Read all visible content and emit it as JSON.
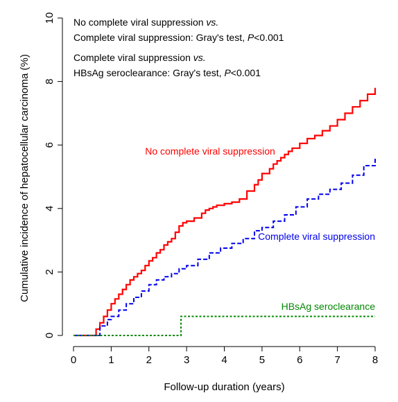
{
  "chart_data": {
    "type": "line",
    "xlabel": "Follow-up duration (years)",
    "ylabel": "Cumulative incidence of hepatocellular carcinoma (%)",
    "xlim": [
      0,
      8
    ],
    "ylim": [
      0,
      10
    ],
    "x_ticks": [
      "0",
      "1",
      "2",
      "3",
      "4",
      "5",
      "6",
      "7",
      "8"
    ],
    "y_ticks": [
      "0",
      "2",
      "4",
      "6",
      "8",
      "10"
    ],
    "grid": false,
    "annotations": [
      {
        "lines": [
          [
            {
              "text": "No complete viral suppression ",
              "italic": false
            },
            {
              "text": "vs.",
              "italic": true
            }
          ],
          [
            {
              "text": "Complete viral suppression: Gray's test, ",
              "italic": false
            },
            {
              "text": "P",
              "italic": true
            },
            {
              "text": "<0.001",
              "italic": false
            }
          ]
        ]
      },
      {
        "lines": [
          [
            {
              "text": "Complete viral suppression ",
              "italic": false
            },
            {
              "text": "vs.",
              "italic": true
            }
          ],
          [
            {
              "text": "HBsAg seroclearance: Gray's test, ",
              "italic": false
            },
            {
              "text": "P",
              "italic": true
            },
            {
              "text": "<0.001",
              "italic": false
            }
          ]
        ]
      }
    ],
    "series": [
      {
        "name": "No complete viral suppression",
        "color": "#ff0000",
        "style": "solid",
        "x": [
          0,
          0.5,
          0.6,
          0.7,
          0.8,
          0.9,
          1.0,
          1.1,
          1.2,
          1.3,
          1.4,
          1.5,
          1.6,
          1.7,
          1.8,
          1.9,
          2.0,
          2.1,
          2.2,
          2.3,
          2.4,
          2.5,
          2.6,
          2.7,
          2.8,
          2.9,
          3.0,
          3.2,
          3.4,
          3.5,
          3.6,
          3.7,
          3.8,
          4.0,
          4.2,
          4.4,
          4.6,
          4.8,
          4.9,
          5.0,
          5.2,
          5.3,
          5.4,
          5.5,
          5.6,
          5.7,
          5.8,
          6.0,
          6.2,
          6.4,
          6.6,
          6.8,
          7.0,
          7.2,
          7.4,
          7.6,
          7.8,
          8.0
        ],
        "y": [
          0,
          0,
          0.2,
          0.4,
          0.6,
          0.8,
          1.0,
          1.15,
          1.3,
          1.45,
          1.6,
          1.75,
          1.85,
          1.95,
          2.05,
          2.2,
          2.35,
          2.45,
          2.6,
          2.7,
          2.85,
          2.95,
          3.05,
          3.25,
          3.45,
          3.55,
          3.6,
          3.7,
          3.85,
          3.95,
          4.0,
          4.05,
          4.1,
          4.15,
          4.2,
          4.3,
          4.55,
          4.75,
          4.9,
          5.1,
          5.25,
          5.4,
          5.5,
          5.6,
          5.7,
          5.8,
          5.9,
          6.05,
          6.2,
          6.3,
          6.45,
          6.6,
          6.8,
          7.0,
          7.2,
          7.4,
          7.6,
          7.8
        ]
      },
      {
        "name": "Complete viral suppression",
        "color": "#0000ee",
        "style": "dashed",
        "x": [
          0,
          0.5,
          0.7,
          0.9,
          1.0,
          1.2,
          1.4,
          1.6,
          1.8,
          2.0,
          2.2,
          2.4,
          2.6,
          2.8,
          3.0,
          3.3,
          3.6,
          3.9,
          4.2,
          4.5,
          4.8,
          5.0,
          5.3,
          5.6,
          5.9,
          6.2,
          6.5,
          6.8,
          7.1,
          7.4,
          7.7,
          8.0
        ],
        "y": [
          0,
          0,
          0.3,
          0.5,
          0.6,
          0.8,
          1.0,
          1.2,
          1.4,
          1.6,
          1.75,
          1.85,
          1.95,
          2.1,
          2.2,
          2.4,
          2.6,
          2.75,
          2.9,
          3.05,
          3.3,
          3.4,
          3.6,
          3.8,
          4.05,
          4.3,
          4.45,
          4.6,
          4.8,
          5.05,
          5.35,
          5.6
        ]
      },
      {
        "name": "HBsAg seroclearance",
        "color": "#008800",
        "style": "dotted",
        "x": [
          0,
          2.8,
          2.85,
          8.0
        ],
        "y": [
          0,
          0,
          0.6,
          0.6
        ]
      }
    ]
  }
}
